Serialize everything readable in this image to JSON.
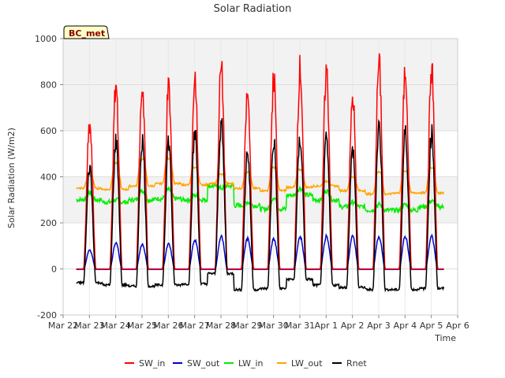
{
  "chart_data": {
    "type": "line",
    "title": "Solar Radiation",
    "xlabel": "Time",
    "ylabel": "Solar Radiation (W/m2)",
    "badge": "BC_met",
    "ylim": [
      -200,
      1000
    ],
    "yticks": [
      -200,
      0,
      200,
      400,
      600,
      800,
      1000
    ],
    "xticks": [
      "Mar 22",
      "Mar 23",
      "Mar 24",
      "Mar 25",
      "Mar 26",
      "Mar 27",
      "Mar 28",
      "Mar 29",
      "Mar 30",
      "Mar 31",
      "Apr 1",
      "Apr 2",
      "Apr 3",
      "Apr 4",
      "Apr 5",
      "Apr 6"
    ],
    "xlim_days": [
      0,
      15
    ],
    "background_bands": true,
    "legend_position": "bottom",
    "days": [
      "Mar 23",
      "Mar 24",
      "Mar 25",
      "Mar 26",
      "Mar 27",
      "Mar 28",
      "Mar 29",
      "Mar 30",
      "Mar 31",
      "Apr 1",
      "Apr 2",
      "Apr 3",
      "Apr 4",
      "Apr 5"
    ],
    "series": [
      {
        "name": "SW_in",
        "color": "#ff0000",
        "daily_peak": [
          670,
          860,
          850,
          850,
          890,
          940,
          810,
          890,
          940,
          930,
          800,
          960,
          930,
          935
        ]
      },
      {
        "name": "SW_out",
        "color": "#0000cc",
        "daily_peak": [
          90,
          120,
          115,
          115,
          135,
          150,
          140,
          140,
          150,
          150,
          150,
          150,
          150,
          150
        ]
      },
      {
        "name": "LW_in",
        "color": "#00ee00",
        "night_level": [
          300,
          290,
          300,
          305,
          300,
          360,
          275,
          260,
          320,
          300,
          270,
          255,
          255,
          270
        ],
        "day_level": [
          330,
          300,
          340,
          345,
          320,
          350,
          290,
          310,
          350,
          340,
          290,
          280,
          280,
          295
        ]
      },
      {
        "name": "LW_out",
        "color": "#ffa500",
        "night_level": [
          350,
          345,
          360,
          370,
          365,
          370,
          350,
          340,
          355,
          360,
          340,
          325,
          330,
          330
        ],
        "day_level": [
          405,
          460,
          475,
          480,
          440,
          410,
          420,
          440,
          430,
          380,
          400,
          420,
          425,
          440
        ]
      },
      {
        "name": "Rnet",
        "color": "#000000",
        "daily_peak": [
          480,
          600,
          605,
          600,
          640,
          680,
          550,
          600,
          610,
          600,
          560,
          670,
          640,
          640
        ],
        "night_level": [
          -60,
          -70,
          -75,
          -70,
          -65,
          -20,
          -90,
          -85,
          -45,
          -70,
          -80,
          -90,
          -90,
          -85
        ]
      }
    ]
  }
}
